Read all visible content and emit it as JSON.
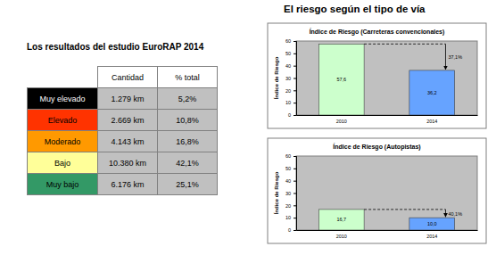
{
  "heading": "El riesgo según el tipo de vía",
  "table": {
    "title": "Los resultados del estudio EuroRAP 2014",
    "header": [
      "Cantidad",
      "% total"
    ],
    "rows": [
      [
        "Muy elevado",
        "1.279 km",
        "5,2%"
      ],
      [
        "Elevado",
        "2.669 km",
        "10,8%"
      ],
      [
        "Moderado",
        "4.143 km",
        "16,8%"
      ],
      [
        "Bajo",
        "10.380 km",
        "42,1%"
      ],
      [
        "Muy bajo",
        "6.176 km",
        "25,1%"
      ]
    ]
  },
  "chart_data": [
    {
      "type": "bar",
      "title": "Índice de Riesgo (Carreteras convencionales)",
      "ylabel": "Índice de Riesgo",
      "categories": [
        "2010",
        "2014"
      ],
      "values": [
        57.6,
        36.2
      ],
      "value_labels": [
        "57,6",
        "36,2"
      ],
      "colors": [
        "#ccffcc",
        "#66a3ff"
      ],
      "ylim": [
        0,
        60
      ],
      "yticks": [
        0,
        10,
        20,
        30,
        40,
        50,
        60
      ],
      "grid": false,
      "data_labels": true,
      "annotations": [
        "37,1%"
      ]
    },
    {
      "type": "bar",
      "title": "Índice de Riesgo (Autopistas)",
      "ylabel": "Índice de Riesgo",
      "categories": [
        "2010",
        "2014"
      ],
      "values": [
        16.7,
        10.0
      ],
      "value_labels": [
        "16,7",
        "10,0"
      ],
      "colors": [
        "#ccffcc",
        "#66a3ff"
      ],
      "ylim": [
        0,
        60
      ],
      "yticks": [
        0,
        10,
        20,
        30,
        40,
        50,
        60
      ],
      "grid": false,
      "data_labels": true,
      "annotations": [
        "40,1%"
      ]
    }
  ]
}
